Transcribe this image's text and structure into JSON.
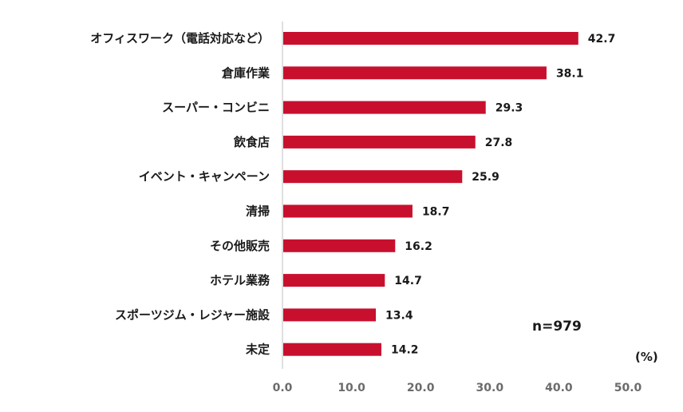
{
  "chart_data": {
    "type": "bar",
    "orientation": "horizontal",
    "categories": [
      "オフィスワーク（電話対応など）",
      "倉庫作業",
      "スーパー・コンビニ",
      "飲食店",
      "イベント・キャンペーン",
      "清掃",
      "その他販売",
      "ホテル業務",
      "スポーツジム・レジャー施設",
      "未定"
    ],
    "values": [
      42.7,
      38.1,
      29.3,
      27.8,
      25.9,
      18.7,
      16.2,
      14.7,
      13.4,
      14.2
    ],
    "value_labels": [
      "42.7",
      "38.1",
      "29.3",
      "27.8",
      "25.9",
      "18.7",
      "16.2",
      "14.7",
      "13.4",
      "14.2"
    ],
    "xlim": [
      0,
      50
    ],
    "xticks": [
      0,
      10,
      20,
      30,
      40,
      50
    ],
    "xtick_labels": [
      "0.0",
      "10.0",
      "20.0",
      "30.0",
      "40.0",
      "50.0"
    ],
    "unit_label": "(%)",
    "annotation": "n=979",
    "bar_color": "#c8102e",
    "grid": false
  }
}
